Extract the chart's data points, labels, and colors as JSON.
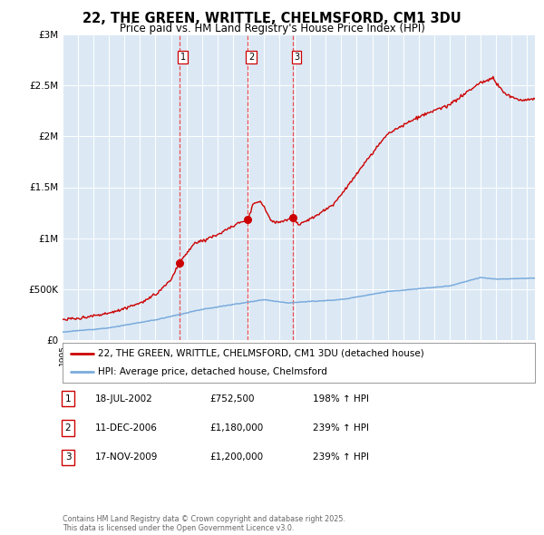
{
  "title": "22, THE GREEN, WRITTLE, CHELMSFORD, CM1 3DU",
  "subtitle": "Price paid vs. HM Land Registry's House Price Index (HPI)",
  "background_color": "#ffffff",
  "plot_bg_color": "#dce9f5",
  "grid_color": "#ffffff",
  "ylim": [
    0,
    3000000
  ],
  "yticks": [
    0,
    500000,
    1000000,
    1500000,
    2000000,
    2500000,
    3000000
  ],
  "ytick_labels": [
    "£0",
    "£500K",
    "£1M",
    "£1.5M",
    "£2M",
    "£2.5M",
    "£3M"
  ],
  "transaction_dates": [
    2002.54,
    2006.95,
    2009.88
  ],
  "transaction_prices": [
    752500,
    1180000,
    1200000
  ],
  "transaction_labels": [
    "1",
    "2",
    "3"
  ],
  "vline_color": "#ee3333",
  "dot_color": "#cc0000",
  "legend_red_label": "22, THE GREEN, WRITTLE, CHELMSFORD, CM1 3DU (detached house)",
  "legend_blue_label": "HPI: Average price, detached house, Chelmsford",
  "table_data": [
    {
      "num": "1",
      "date": "18-JUL-2002",
      "price": "£752,500",
      "hpi": "198% ↑ HPI"
    },
    {
      "num": "2",
      "date": "11-DEC-2006",
      "price": "£1,180,000",
      "hpi": "239% ↑ HPI"
    },
    {
      "num": "3",
      "date": "17-NOV-2009",
      "price": "£1,200,000",
      "hpi": "239% ↑ HPI"
    }
  ],
  "footer": "Contains HM Land Registry data © Crown copyright and database right 2025.\nThis data is licensed under the Open Government Licence v3.0.",
  "red_line_color": "#cc0000",
  "blue_line_color": "#7aabdc",
  "xlim_left": 1995.0,
  "xlim_right": 2025.5
}
